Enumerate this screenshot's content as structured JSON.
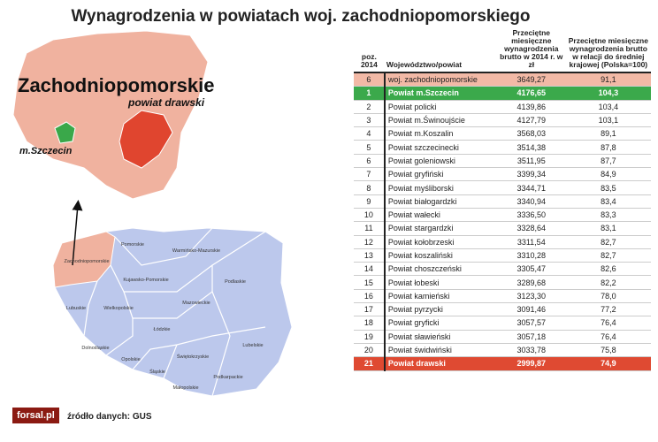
{
  "title": "Wynagrodzenia w powiatach woj. zachodniopomorskiego",
  "map": {
    "region_label": "Zachodniopomorskie",
    "district_label": "powiat drawski",
    "city_label": "m.Szczecin",
    "voivodeships": [
      "Pomorskie",
      "Warmińsko-Mazurskie",
      "Zachodniopomorskie",
      "Kujawsko-Pomorskie",
      "Podlaskie",
      "Lubuskie",
      "Wielkopolskie",
      "Mazowieckie",
      "Łódzkie",
      "Dolnośląskie",
      "Opolskie",
      "Świętokrzyskie",
      "Lubelskie",
      "Śląskie",
      "Podkarpackie",
      "Małopolskie"
    ]
  },
  "table": {
    "header": [
      "poz. 2014",
      "Województwo/powiat",
      "Przeciętne miesięczne wynagrodzenia brutto w 2014 r. w zł",
      "Przeciętne miesięczne wynagrodzenia brutto w relacji do średniej krajowej (Polska=100)"
    ],
    "rows": [
      [
        "6",
        "woj. zachodniopomorskie",
        "3649,27",
        "91,1"
      ],
      [
        "1",
        "Powiat m.Szczecin",
        "4176,65",
        "104,3"
      ],
      [
        "2",
        "Powiat policki",
        "4139,86",
        "103,4"
      ],
      [
        "3",
        "Powiat m.Świnoujście",
        "4127,79",
        "103,1"
      ],
      [
        "4",
        "Powiat m.Koszalin",
        "3568,03",
        "89,1"
      ],
      [
        "5",
        "Powiat szczecinecki",
        "3514,38",
        "87,8"
      ],
      [
        "6",
        "Powiat goleniowski",
        "3511,95",
        "87,7"
      ],
      [
        "7",
        "Powiat gryfiński",
        "3399,34",
        "84,9"
      ],
      [
        "8",
        "Powiat myśliborski",
        "3344,71",
        "83,5"
      ],
      [
        "9",
        "Powiat białogardzki",
        "3340,94",
        "83,4"
      ],
      [
        "10",
        "Powiat wałecki",
        "3336,50",
        "83,3"
      ],
      [
        "11",
        "Powiat stargardzki",
        "3328,64",
        "83,1"
      ],
      [
        "12",
        "Powiat kołobrzeski",
        "3311,54",
        "82,7"
      ],
      [
        "13",
        "Powiat koszaliński",
        "3310,28",
        "82,7"
      ],
      [
        "14",
        "Powiat choszczeński",
        "3305,47",
        "82,6"
      ],
      [
        "15",
        "Powiat łobeski",
        "3289,68",
        "82,2"
      ],
      [
        "16",
        "Powiat kamieński",
        "3123,30",
        "78,0"
      ],
      [
        "17",
        "Powiat pyrzycki",
        "3091,46",
        "77,2"
      ],
      [
        "18",
        "Powiat gryficki",
        "3057,57",
        "76,4"
      ],
      [
        "19",
        "Powiat sławieński",
        "3057,18",
        "76,4"
      ],
      [
        "20",
        "Powiat świdwiński",
        "3033,78",
        "75,8"
      ],
      [
        "21",
        "Powiat drawski",
        "2999,87",
        "74,9"
      ]
    ]
  },
  "source": "źródło danych: GUS",
  "logo": "forsal.pl"
}
